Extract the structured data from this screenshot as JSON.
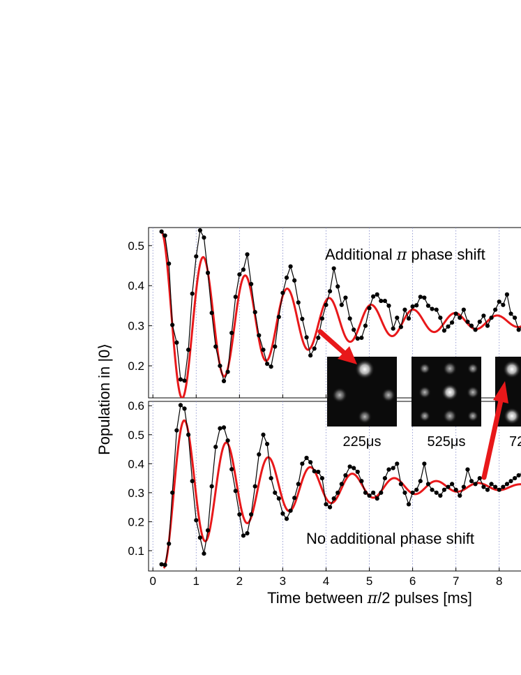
{
  "chart_data": {
    "type": "line",
    "xlabel_prefix": "Time between ",
    "xlabel_pi": "π",
    "xlabel_suffix": "/2 pulses [ms]",
    "ylabel": "Population in |0⟩",
    "xlim": [
      -0.1,
      8.6
    ],
    "x_ticks": [
      "0",
      "1",
      "2",
      "3",
      "4",
      "5",
      "6",
      "7",
      "8"
    ],
    "x_tick_values": [
      0,
      1,
      2,
      3,
      4,
      5,
      6,
      7,
      8
    ],
    "grid": "vertical dotted at integer ms",
    "panels": [
      {
        "id": "top",
        "annotation_prefix": "Additional ",
        "annotation_pi": "π",
        "annotation_suffix": " phase shift",
        "ylim": [
          0.12,
          0.545
        ],
        "y_ticks": [
          "0.2",
          "0.3",
          "0.4",
          "0.5"
        ],
        "y_tick_values": [
          0.2,
          0.3,
          0.4,
          0.5
        ],
        "fit_color": "#e8181a",
        "data_color": "#000000",
        "fit": {
          "offset": 0.31,
          "amplitude": 0.225,
          "tau": 2.9,
          "period": 0.97,
          "phase": 0.0,
          "start": 0.2
        },
        "data": [
          [
            0.2,
            0.535
          ],
          [
            0.28,
            0.525
          ],
          [
            0.37,
            0.455
          ],
          [
            0.45,
            0.302
          ],
          [
            0.55,
            0.258
          ],
          [
            0.64,
            0.166
          ],
          [
            0.73,
            0.163
          ],
          [
            0.82,
            0.24
          ],
          [
            0.91,
            0.38
          ],
          [
            1.0,
            0.473
          ],
          [
            1.09,
            0.538
          ],
          [
            1.18,
            0.52
          ],
          [
            1.27,
            0.432
          ],
          [
            1.36,
            0.332
          ],
          [
            1.45,
            0.248
          ],
          [
            1.55,
            0.2
          ],
          [
            1.64,
            0.162
          ],
          [
            1.73,
            0.185
          ],
          [
            1.82,
            0.282
          ],
          [
            1.91,
            0.372
          ],
          [
            2.0,
            0.428
          ],
          [
            2.09,
            0.44
          ],
          [
            2.18,
            0.478
          ],
          [
            2.27,
            0.404
          ],
          [
            2.36,
            0.334
          ],
          [
            2.45,
            0.276
          ],
          [
            2.55,
            0.24
          ],
          [
            2.64,
            0.205
          ],
          [
            2.73,
            0.198
          ],
          [
            2.82,
            0.248
          ],
          [
            2.91,
            0.322
          ],
          [
            3.0,
            0.382
          ],
          [
            3.09,
            0.42
          ],
          [
            3.18,
            0.448
          ],
          [
            3.27,
            0.413
          ],
          [
            3.36,
            0.358
          ],
          [
            3.45,
            0.317
          ],
          [
            3.55,
            0.271
          ],
          [
            3.64,
            0.226
          ],
          [
            3.73,
            0.243
          ],
          [
            3.82,
            0.27
          ],
          [
            3.91,
            0.318
          ],
          [
            4.0,
            0.352
          ],
          [
            4.09,
            0.386
          ],
          [
            4.18,
            0.443
          ],
          [
            4.27,
            0.398
          ],
          [
            4.36,
            0.352
          ],
          [
            4.45,
            0.37
          ],
          [
            4.55,
            0.318
          ],
          [
            4.64,
            0.29
          ],
          [
            4.73,
            0.268
          ],
          [
            4.82,
            0.27
          ],
          [
            4.91,
            0.3
          ],
          [
            5.0,
            0.344
          ],
          [
            5.09,
            0.373
          ],
          [
            5.18,
            0.378
          ],
          [
            5.27,
            0.362
          ],
          [
            5.36,
            0.362
          ],
          [
            5.45,
            0.35
          ],
          [
            5.55,
            0.293
          ],
          [
            5.64,
            0.32
          ],
          [
            5.73,
            0.297
          ],
          [
            5.82,
            0.34
          ],
          [
            5.91,
            0.318
          ],
          [
            6.0,
            0.348
          ],
          [
            6.09,
            0.351
          ],
          [
            6.18,
            0.372
          ],
          [
            6.27,
            0.37
          ],
          [
            6.36,
            0.35
          ],
          [
            6.45,
            0.342
          ],
          [
            6.55,
            0.34
          ],
          [
            6.64,
            0.32
          ],
          [
            6.73,
            0.288
          ],
          [
            6.82,
            0.298
          ],
          [
            6.91,
            0.308
          ],
          [
            7.0,
            0.33
          ],
          [
            7.09,
            0.32
          ],
          [
            7.18,
            0.34
          ],
          [
            7.27,
            0.31
          ],
          [
            7.36,
            0.3
          ],
          [
            7.45,
            0.29
          ],
          [
            7.55,
            0.31
          ],
          [
            7.64,
            0.325
          ],
          [
            7.73,
            0.3
          ],
          [
            7.82,
            0.32
          ],
          [
            7.91,
            0.34
          ],
          [
            8.0,
            0.36
          ],
          [
            8.09,
            0.352
          ],
          [
            8.18,
            0.378
          ],
          [
            8.27,
            0.33
          ],
          [
            8.36,
            0.32
          ],
          [
            8.45,
            0.29
          ],
          [
            8.55,
            0.3
          ]
        ]
      },
      {
        "id": "bottom",
        "annotation": "No additional phase shift",
        "ylim": [
          0.03,
          0.615
        ],
        "y_ticks": [
          "0.1",
          "0.2",
          "0.3",
          "0.4",
          "0.5",
          "0.6"
        ],
        "y_tick_values": [
          0.1,
          0.2,
          0.3,
          0.4,
          0.5,
          0.6
        ],
        "fit_color": "#e8181a",
        "data_color": "#000000",
        "fit": {
          "offset": 0.32,
          "amplitude": 0.28,
          "tau": 2.4,
          "period": 0.97,
          "phase": 3.14159,
          "start": 0.25
        },
        "data": [
          [
            0.2,
            0.053
          ],
          [
            0.28,
            0.051
          ],
          [
            0.37,
            0.124
          ],
          [
            0.45,
            0.3
          ],
          [
            0.55,
            0.515
          ],
          [
            0.64,
            0.602
          ],
          [
            0.73,
            0.59
          ],
          [
            0.82,
            0.5
          ],
          [
            0.91,
            0.34
          ],
          [
            1.0,
            0.205
          ],
          [
            1.09,
            0.145
          ],
          [
            1.18,
            0.09
          ],
          [
            1.27,
            0.17
          ],
          [
            1.36,
            0.322
          ],
          [
            1.45,
            0.458
          ],
          [
            1.55,
            0.522
          ],
          [
            1.64,
            0.525
          ],
          [
            1.73,
            0.48
          ],
          [
            1.82,
            0.381
          ],
          [
            1.91,
            0.306
          ],
          [
            2.0,
            0.225
          ],
          [
            2.09,
            0.152
          ],
          [
            2.18,
            0.16
          ],
          [
            2.27,
            0.225
          ],
          [
            2.36,
            0.322
          ],
          [
            2.45,
            0.432
          ],
          [
            2.55,
            0.5
          ],
          [
            2.64,
            0.468
          ],
          [
            2.73,
            0.35
          ],
          [
            2.82,
            0.3
          ],
          [
            2.91,
            0.28
          ],
          [
            3.0,
            0.228
          ],
          [
            3.09,
            0.21
          ],
          [
            3.18,
            0.238
          ],
          [
            3.27,
            0.282
          ],
          [
            3.36,
            0.33
          ],
          [
            3.45,
            0.4
          ],
          [
            3.55,
            0.42
          ],
          [
            3.64,
            0.405
          ],
          [
            3.73,
            0.374
          ],
          [
            3.82,
            0.372
          ],
          [
            3.91,
            0.35
          ],
          [
            4.0,
            0.26
          ],
          [
            4.09,
            0.25
          ],
          [
            4.18,
            0.28
          ],
          [
            4.27,
            0.3
          ],
          [
            4.36,
            0.33
          ],
          [
            4.45,
            0.36
          ],
          [
            4.55,
            0.39
          ],
          [
            4.64,
            0.385
          ],
          [
            4.73,
            0.372
          ],
          [
            4.82,
            0.34
          ],
          [
            4.91,
            0.3
          ],
          [
            5.0,
            0.29
          ],
          [
            5.09,
            0.3
          ],
          [
            5.18,
            0.28
          ],
          [
            5.27,
            0.3
          ],
          [
            5.36,
            0.35
          ],
          [
            5.45,
            0.38
          ],
          [
            5.55,
            0.385
          ],
          [
            5.64,
            0.4
          ],
          [
            5.73,
            0.33
          ],
          [
            5.82,
            0.3
          ],
          [
            5.91,
            0.26
          ],
          [
            6.0,
            0.3
          ],
          [
            6.09,
            0.31
          ],
          [
            6.18,
            0.34
          ],
          [
            6.27,
            0.4
          ],
          [
            6.36,
            0.33
          ],
          [
            6.45,
            0.31
          ],
          [
            6.55,
            0.3
          ],
          [
            6.64,
            0.29
          ],
          [
            6.73,
            0.31
          ],
          [
            6.82,
            0.32
          ],
          [
            6.91,
            0.33
          ],
          [
            7.0,
            0.31
          ],
          [
            7.09,
            0.29
          ],
          [
            7.18,
            0.32
          ],
          [
            7.27,
            0.38
          ],
          [
            7.36,
            0.34
          ],
          [
            7.45,
            0.33
          ],
          [
            7.55,
            0.35
          ],
          [
            7.64,
            0.32
          ],
          [
            7.73,
            0.31
          ],
          [
            7.82,
            0.33
          ],
          [
            7.91,
            0.32
          ],
          [
            8.0,
            0.31
          ],
          [
            8.09,
            0.32
          ],
          [
            8.18,
            0.33
          ],
          [
            8.27,
            0.34
          ],
          [
            8.36,
            0.35
          ],
          [
            8.45,
            0.36
          ],
          [
            8.55,
            0.37
          ]
        ]
      }
    ],
    "insets": [
      {
        "label": "225μs"
      },
      {
        "label": "525μs"
      },
      {
        "label": "72"
      }
    ],
    "arrow_color": "#e8181a"
  }
}
